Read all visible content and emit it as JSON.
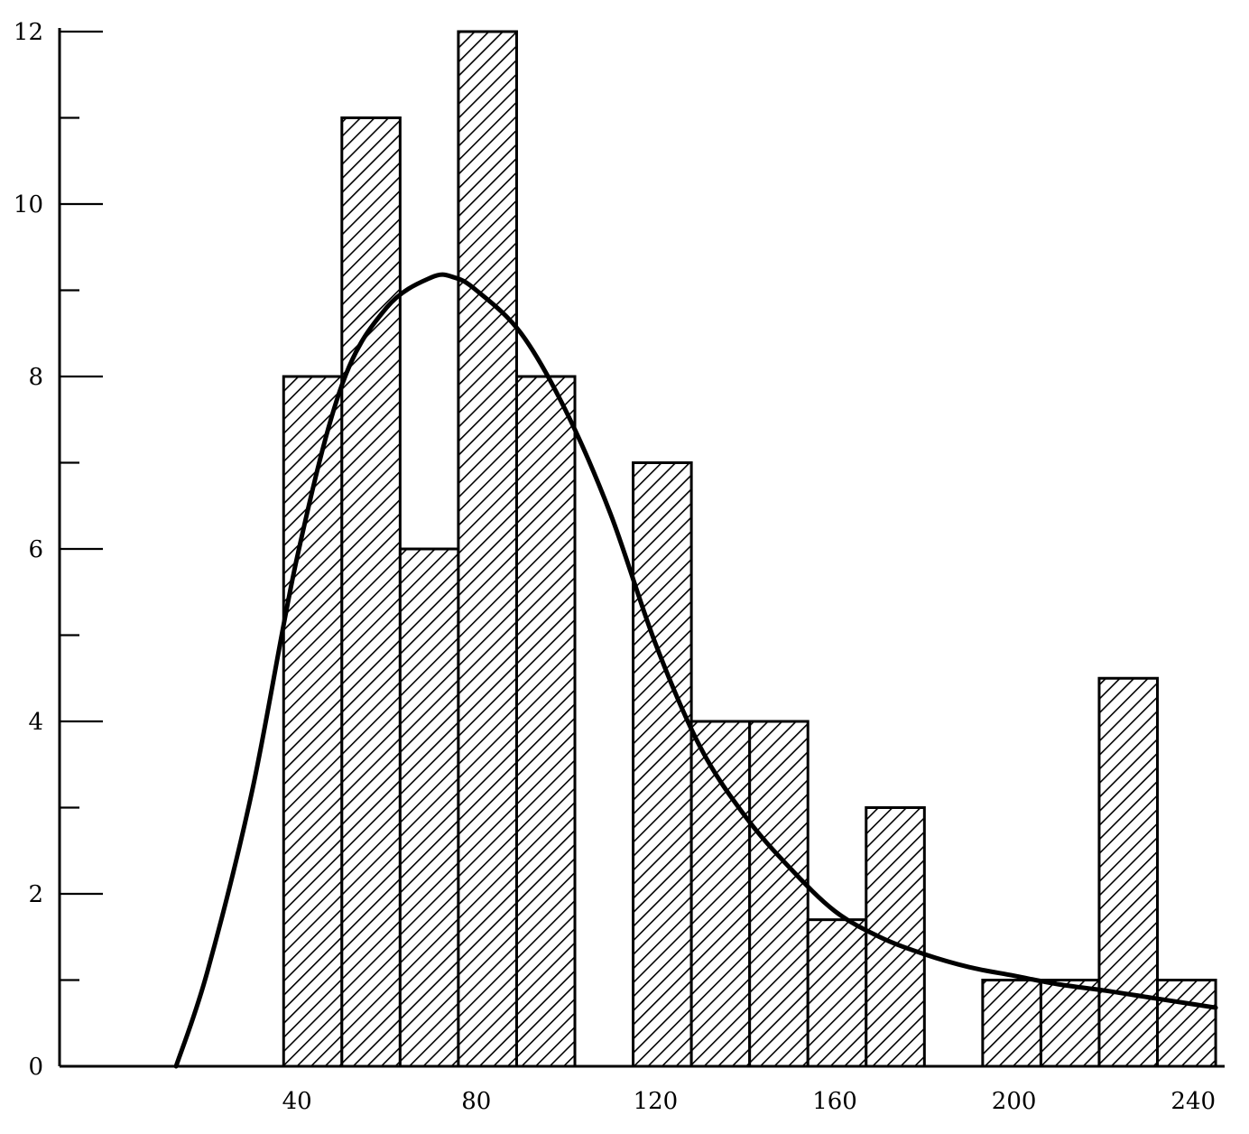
{
  "chart_data": {
    "type": "bar",
    "title": "",
    "xlabel": "",
    "ylabel": "",
    "xlim": [
      -13,
      247
    ],
    "ylim": [
      0,
      12
    ],
    "grid": false,
    "x_ticks": [
      40,
      80,
      120,
      160,
      200,
      240
    ],
    "y_ticks": [
      0,
      2,
      4,
      6,
      8,
      10,
      12
    ],
    "x_tick_labels": [
      "40",
      "80",
      "120",
      "160",
      "200",
      "240"
    ],
    "y_tick_labels": [
      "0",
      "2",
      "4",
      "6",
      "8",
      "10",
      "12"
    ],
    "bars": [
      {
        "x0": 37,
        "x1": 50,
        "value": 8
      },
      {
        "x0": 50,
        "x1": 63,
        "value": 11
      },
      {
        "x0": 63,
        "x1": 76,
        "value": 6
      },
      {
        "x0": 76,
        "x1": 89,
        "value": 12
      },
      {
        "x0": 89,
        "x1": 102,
        "value": 8
      },
      {
        "x0": 115,
        "x1": 128,
        "value": 7
      },
      {
        "x0": 128,
        "x1": 141,
        "value": 4
      },
      {
        "x0": 141,
        "x1": 154,
        "value": 4
      },
      {
        "x0": 154,
        "x1": 167,
        "value": 1.7
      },
      {
        "x0": 167,
        "x1": 180,
        "value": 3
      },
      {
        "x0": 193,
        "x1": 206,
        "value": 1
      },
      {
        "x0": 206,
        "x1": 219,
        "value": 1
      },
      {
        "x0": 219,
        "x1": 232,
        "value": 4.5
      },
      {
        "x0": 232,
        "x1": 245,
        "value": 1
      }
    ],
    "curve": {
      "x": [
        13,
        20,
        30,
        40,
        50,
        60,
        70,
        75,
        80,
        90,
        100,
        110,
        120,
        130,
        140,
        150,
        160,
        170,
        180,
        190,
        200,
        210,
        220,
        230,
        240,
        245
      ],
      "y": [
        0,
        1.1,
        3.2,
        5.9,
        7.9,
        8.8,
        9.15,
        9.15,
        9.0,
        8.5,
        7.6,
        6.4,
        4.9,
        3.7,
        2.9,
        2.3,
        1.8,
        1.5,
        1.3,
        1.15,
        1.05,
        0.95,
        0.88,
        0.8,
        0.72,
        0.68
      ]
    },
    "colors": {
      "bar_fill": "#ffffff",
      "hatch": "#000000",
      "stroke": "#000000"
    }
  }
}
